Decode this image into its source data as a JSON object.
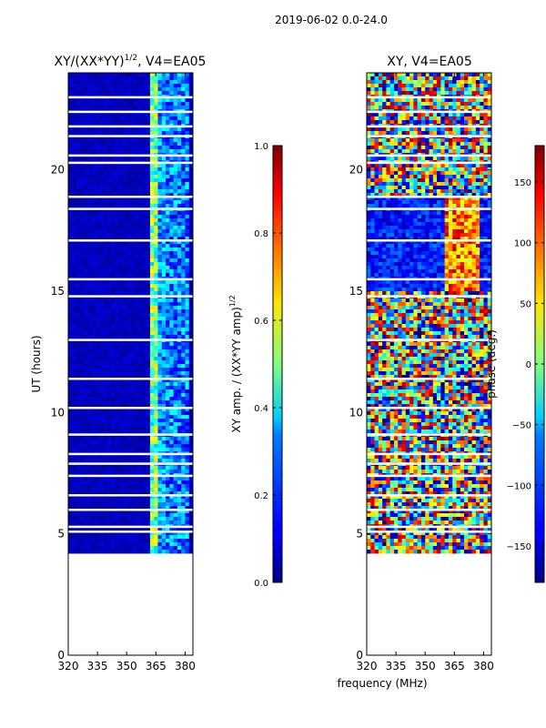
{
  "suptitle": "2019-06-02 0.0-24.0",
  "shared_xlabel": "frequency (MHz)",
  "chart_data": [
    {
      "type": "heatmap",
      "title_main": "XY/(XX*YY)",
      "title_sup": "1/2",
      "title_tail": ", V4=EA05",
      "ylabel": "UT (hours)",
      "xlim": [
        320,
        384
      ],
      "ylim": [
        0,
        24
      ],
      "xticks": [
        320,
        335,
        350,
        365,
        380
      ],
      "yticks": [
        0,
        5,
        10,
        15,
        20
      ],
      "data_start_hour": 4.3,
      "data_end_hour": 24.0,
      "colorbar": {
        "label_main": "XY amp. / (XX*YY amp)",
        "label_sup": "1/2",
        "range": [
          0.0,
          1.0
        ],
        "ticks": [
          "0.0",
          "0.2",
          "0.4",
          "0.6",
          "0.8",
          "1.0"
        ],
        "tick_values": [
          0.0,
          0.2,
          0.4,
          0.6,
          0.8,
          1.0
        ]
      }
    },
    {
      "type": "heatmap",
      "title_main": "XY, V4=EA05",
      "ylabel": "",
      "xlim": [
        320,
        384
      ],
      "ylim": [
        0,
        24
      ],
      "xticks": [
        320,
        335,
        350,
        365,
        380
      ],
      "yticks": [
        0,
        5,
        10,
        15,
        20
      ],
      "data_start_hour": 4.3,
      "data_end_hour": 24.0,
      "colorbar": {
        "label_main": "phase (deg.)",
        "range": [
          -180,
          180
        ],
        "ticks": [
          "−150",
          "−100",
          "−50",
          "0",
          "50",
          "100",
          "150"
        ],
        "tick_values": [
          -150,
          -100,
          -50,
          0,
          50,
          100,
          150
        ]
      }
    }
  ]
}
